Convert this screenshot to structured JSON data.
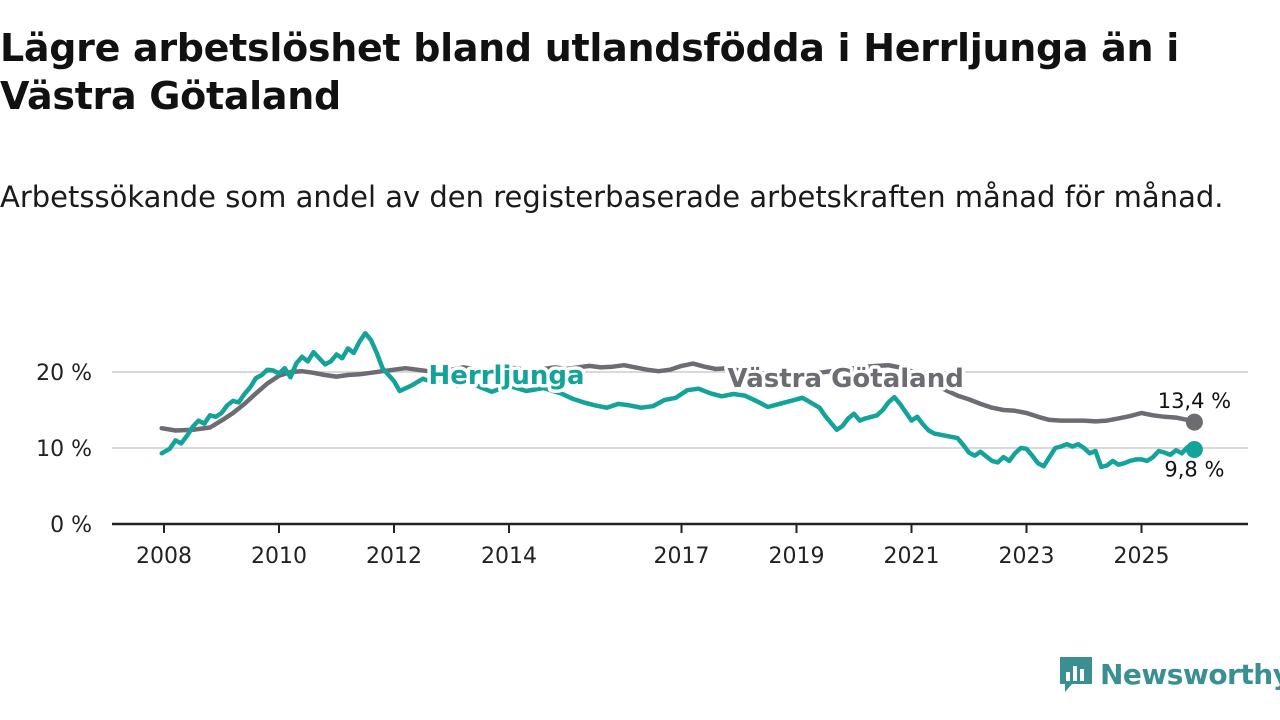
{
  "title": "Lägre arbetslöshet bland utlandsfödda i Herrljunga än i Västra Götaland",
  "subtitle": "Arbetssökande som andel av den registerbaserade arbetskraften månad för månad.",
  "brand": {
    "name": "Newsworthy",
    "logo_icon": "newsworthy-logo-icon",
    "color": "#3a8f92"
  },
  "chart_data": {
    "type": "line",
    "ylim": [
      0,
      30
    ],
    "xlim": [
      2007.9,
      2026.2
    ],
    "y_ticks": [
      {
        "value": 0,
        "label": "0 %"
      },
      {
        "value": 10,
        "label": "10 %"
      },
      {
        "value": 20,
        "label": "20 %"
      }
    ],
    "x_ticks": [
      {
        "value": 2008,
        "label": "2008"
      },
      {
        "value": 2010,
        "label": "2010"
      },
      {
        "value": 2012,
        "label": "2012"
      },
      {
        "value": 2014,
        "label": "2014"
      },
      {
        "value": 2017,
        "label": "2017"
      },
      {
        "value": 2019,
        "label": "2019"
      },
      {
        "value": 2021,
        "label": "2021"
      },
      {
        "value": 2023,
        "label": "2023"
      },
      {
        "value": 2025,
        "label": "2025"
      }
    ],
    "series": [
      {
        "name": "Västra Götaland",
        "color": "#6e6c73",
        "end_label": "13,4 %",
        "points": [
          [
            2007.96,
            12.6
          ],
          [
            2008.2,
            12.3
          ],
          [
            2008.5,
            12.4
          ],
          [
            2008.8,
            12.7
          ],
          [
            2009.0,
            13.6
          ],
          [
            2009.2,
            14.6
          ],
          [
            2009.4,
            15.8
          ],
          [
            2009.6,
            17.2
          ],
          [
            2009.8,
            18.5
          ],
          [
            2010.0,
            19.5
          ],
          [
            2010.2,
            20.0
          ],
          [
            2010.4,
            20.1
          ],
          [
            2010.6,
            19.9
          ],
          [
            2010.8,
            19.6
          ],
          [
            2011.0,
            19.4
          ],
          [
            2011.2,
            19.6
          ],
          [
            2011.4,
            19.7
          ],
          [
            2011.6,
            19.9
          ],
          [
            2011.8,
            20.1
          ],
          [
            2012.0,
            20.3
          ],
          [
            2012.2,
            20.5
          ],
          [
            2012.4,
            20.3
          ],
          [
            2012.6,
            20.1
          ],
          [
            2012.8,
            20.0
          ],
          [
            2013.0,
            20.3
          ],
          [
            2013.2,
            20.6
          ],
          [
            2013.4,
            20.4
          ],
          [
            2013.6,
            20.2
          ],
          [
            2013.8,
            20.4
          ],
          [
            2014.0,
            20.6
          ],
          [
            2014.2,
            20.4
          ],
          [
            2014.4,
            20.2
          ],
          [
            2014.6,
            20.4
          ],
          [
            2014.8,
            20.6
          ],
          [
            2015.0,
            20.4
          ],
          [
            2015.2,
            20.6
          ],
          [
            2015.4,
            20.8
          ],
          [
            2015.6,
            20.6
          ],
          [
            2015.8,
            20.7
          ],
          [
            2016.0,
            20.9
          ],
          [
            2016.2,
            20.6
          ],
          [
            2016.4,
            20.3
          ],
          [
            2016.6,
            20.1
          ],
          [
            2016.8,
            20.3
          ],
          [
            2017.0,
            20.8
          ],
          [
            2017.2,
            21.1
          ],
          [
            2017.4,
            20.7
          ],
          [
            2017.6,
            20.4
          ],
          [
            2017.8,
            20.5
          ],
          [
            2018.0,
            20.2
          ],
          [
            2018.2,
            20.0
          ],
          [
            2018.4,
            19.8
          ],
          [
            2018.6,
            19.6
          ],
          [
            2018.8,
            19.3
          ],
          [
            2019.0,
            19.5
          ],
          [
            2019.2,
            19.7
          ],
          [
            2019.4,
            19.9
          ],
          [
            2019.6,
            20.1
          ],
          [
            2019.8,
            20.3
          ],
          [
            2020.0,
            20.5
          ],
          [
            2020.2,
            20.7
          ],
          [
            2020.4,
            20.8
          ],
          [
            2020.6,
            20.9
          ],
          [
            2020.8,
            20.6
          ],
          [
            2021.0,
            20.1
          ],
          [
            2021.2,
            19.4
          ],
          [
            2021.4,
            18.5
          ],
          [
            2021.6,
            17.6
          ],
          [
            2021.8,
            16.9
          ],
          [
            2022.0,
            16.4
          ],
          [
            2022.2,
            15.8
          ],
          [
            2022.4,
            15.3
          ],
          [
            2022.6,
            15.0
          ],
          [
            2022.8,
            14.9
          ],
          [
            2023.0,
            14.6
          ],
          [
            2023.2,
            14.1
          ],
          [
            2023.4,
            13.7
          ],
          [
            2023.6,
            13.6
          ],
          [
            2023.8,
            13.6
          ],
          [
            2024.0,
            13.6
          ],
          [
            2024.2,
            13.5
          ],
          [
            2024.4,
            13.6
          ],
          [
            2024.6,
            13.9
          ],
          [
            2024.8,
            14.2
          ],
          [
            2025.0,
            14.6
          ],
          [
            2025.2,
            14.3
          ],
          [
            2025.4,
            14.1
          ],
          [
            2025.6,
            14.0
          ],
          [
            2025.8,
            13.7
          ],
          [
            2025.92,
            13.4
          ]
        ]
      },
      {
        "name": "Herrljunga",
        "color": "#14a39b",
        "end_label": "9,8 %",
        "points": [
          [
            2007.96,
            9.3
          ],
          [
            2008.1,
            9.9
          ],
          [
            2008.2,
            11.0
          ],
          [
            2008.3,
            10.6
          ],
          [
            2008.4,
            11.6
          ],
          [
            2008.5,
            12.8
          ],
          [
            2008.6,
            13.6
          ],
          [
            2008.7,
            13.2
          ],
          [
            2008.8,
            14.3
          ],
          [
            2008.9,
            14.1
          ],
          [
            2009.0,
            14.6
          ],
          [
            2009.1,
            15.6
          ],
          [
            2009.2,
            16.2
          ],
          [
            2009.3,
            16.0
          ],
          [
            2009.4,
            17.1
          ],
          [
            2009.5,
            18.0
          ],
          [
            2009.6,
            19.2
          ],
          [
            2009.7,
            19.6
          ],
          [
            2009.8,
            20.3
          ],
          [
            2009.9,
            20.2
          ],
          [
            2010.0,
            19.8
          ],
          [
            2010.1,
            20.5
          ],
          [
            2010.2,
            19.3
          ],
          [
            2010.3,
            21.1
          ],
          [
            2010.4,
            22.0
          ],
          [
            2010.5,
            21.4
          ],
          [
            2010.6,
            22.6
          ],
          [
            2010.7,
            21.8
          ],
          [
            2010.8,
            21.0
          ],
          [
            2010.9,
            21.4
          ],
          [
            2011.0,
            22.3
          ],
          [
            2011.1,
            21.8
          ],
          [
            2011.2,
            23.1
          ],
          [
            2011.3,
            22.5
          ],
          [
            2011.4,
            24.0
          ],
          [
            2011.5,
            25.1
          ],
          [
            2011.6,
            24.2
          ],
          [
            2011.7,
            22.5
          ],
          [
            2011.8,
            20.5
          ],
          [
            2012.0,
            18.8
          ],
          [
            2012.1,
            17.5
          ],
          [
            2012.3,
            18.2
          ],
          [
            2012.5,
            19.1
          ],
          [
            2012.7,
            18.6
          ],
          [
            2012.9,
            19.3
          ],
          [
            2013.1,
            18.2
          ],
          [
            2013.3,
            18.8
          ],
          [
            2013.5,
            18.0
          ],
          [
            2013.7,
            17.4
          ],
          [
            2014.0,
            18.2
          ],
          [
            2014.3,
            17.5
          ],
          [
            2014.6,
            17.9
          ],
          [
            2014.9,
            17.2
          ],
          [
            2015.1,
            16.5
          ],
          [
            2015.3,
            16.0
          ],
          [
            2015.5,
            15.6
          ],
          [
            2015.7,
            15.3
          ],
          [
            2015.9,
            15.8
          ],
          [
            2016.1,
            15.6
          ],
          [
            2016.3,
            15.3
          ],
          [
            2016.5,
            15.5
          ],
          [
            2016.7,
            16.3
          ],
          [
            2016.9,
            16.6
          ],
          [
            2017.1,
            17.6
          ],
          [
            2017.3,
            17.8
          ],
          [
            2017.5,
            17.2
          ],
          [
            2017.7,
            16.8
          ],
          [
            2017.9,
            17.1
          ],
          [
            2018.1,
            16.9
          ],
          [
            2018.3,
            16.2
          ],
          [
            2018.5,
            15.4
          ],
          [
            2018.7,
            15.8
          ],
          [
            2018.9,
            16.2
          ],
          [
            2019.1,
            16.6
          ],
          [
            2019.2,
            16.2
          ],
          [
            2019.4,
            15.3
          ],
          [
            2019.5,
            14.2
          ],
          [
            2019.6,
            13.3
          ],
          [
            2019.7,
            12.4
          ],
          [
            2019.8,
            12.9
          ],
          [
            2019.9,
            13.9
          ],
          [
            2020.0,
            14.5
          ],
          [
            2020.1,
            13.6
          ],
          [
            2020.2,
            13.9
          ],
          [
            2020.4,
            14.3
          ],
          [
            2020.5,
            15.0
          ],
          [
            2020.6,
            16.0
          ],
          [
            2020.7,
            16.7
          ],
          [
            2020.8,
            15.8
          ],
          [
            2020.9,
            14.7
          ],
          [
            2021.0,
            13.6
          ],
          [
            2021.1,
            14.1
          ],
          [
            2021.2,
            13.1
          ],
          [
            2021.3,
            12.3
          ],
          [
            2021.4,
            11.9
          ],
          [
            2021.6,
            11.6
          ],
          [
            2021.8,
            11.3
          ],
          [
            2021.9,
            10.4
          ],
          [
            2022.0,
            9.4
          ],
          [
            2022.1,
            9.0
          ],
          [
            2022.2,
            9.5
          ],
          [
            2022.3,
            8.9
          ],
          [
            2022.4,
            8.3
          ],
          [
            2022.5,
            8.1
          ],
          [
            2022.6,
            8.8
          ],
          [
            2022.7,
            8.3
          ],
          [
            2022.8,
            9.3
          ],
          [
            2022.9,
            10.0
          ],
          [
            2023.0,
            9.9
          ],
          [
            2023.1,
            9.0
          ],
          [
            2023.2,
            8.0
          ],
          [
            2023.3,
            7.6
          ],
          [
            2023.4,
            8.8
          ],
          [
            2023.5,
            10.0
          ],
          [
            2023.6,
            10.2
          ],
          [
            2023.7,
            10.5
          ],
          [
            2023.8,
            10.2
          ],
          [
            2023.9,
            10.5
          ],
          [
            2024.0,
            10.0
          ],
          [
            2024.1,
            9.3
          ],
          [
            2024.2,
            9.6
          ],
          [
            2024.3,
            7.5
          ],
          [
            2024.4,
            7.7
          ],
          [
            2024.5,
            8.3
          ],
          [
            2024.6,
            7.8
          ],
          [
            2024.7,
            8.0
          ],
          [
            2024.8,
            8.3
          ],
          [
            2024.9,
            8.5
          ],
          [
            2025.0,
            8.5
          ],
          [
            2025.1,
            8.3
          ],
          [
            2025.2,
            8.8
          ],
          [
            2025.3,
            9.6
          ],
          [
            2025.4,
            9.4
          ],
          [
            2025.5,
            9.1
          ],
          [
            2025.6,
            9.7
          ],
          [
            2025.7,
            9.3
          ],
          [
            2025.8,
            10.1
          ],
          [
            2025.92,
            9.8
          ]
        ]
      }
    ],
    "inline_labels": [
      {
        "series": "Herrljunga",
        "text": "Herrljunga",
        "x": 2012.6,
        "y": 18.4
      },
      {
        "series": "Västra Götaland",
        "text": "Västra Götaland",
        "x": 2017.8,
        "y": 18.0
      }
    ]
  }
}
